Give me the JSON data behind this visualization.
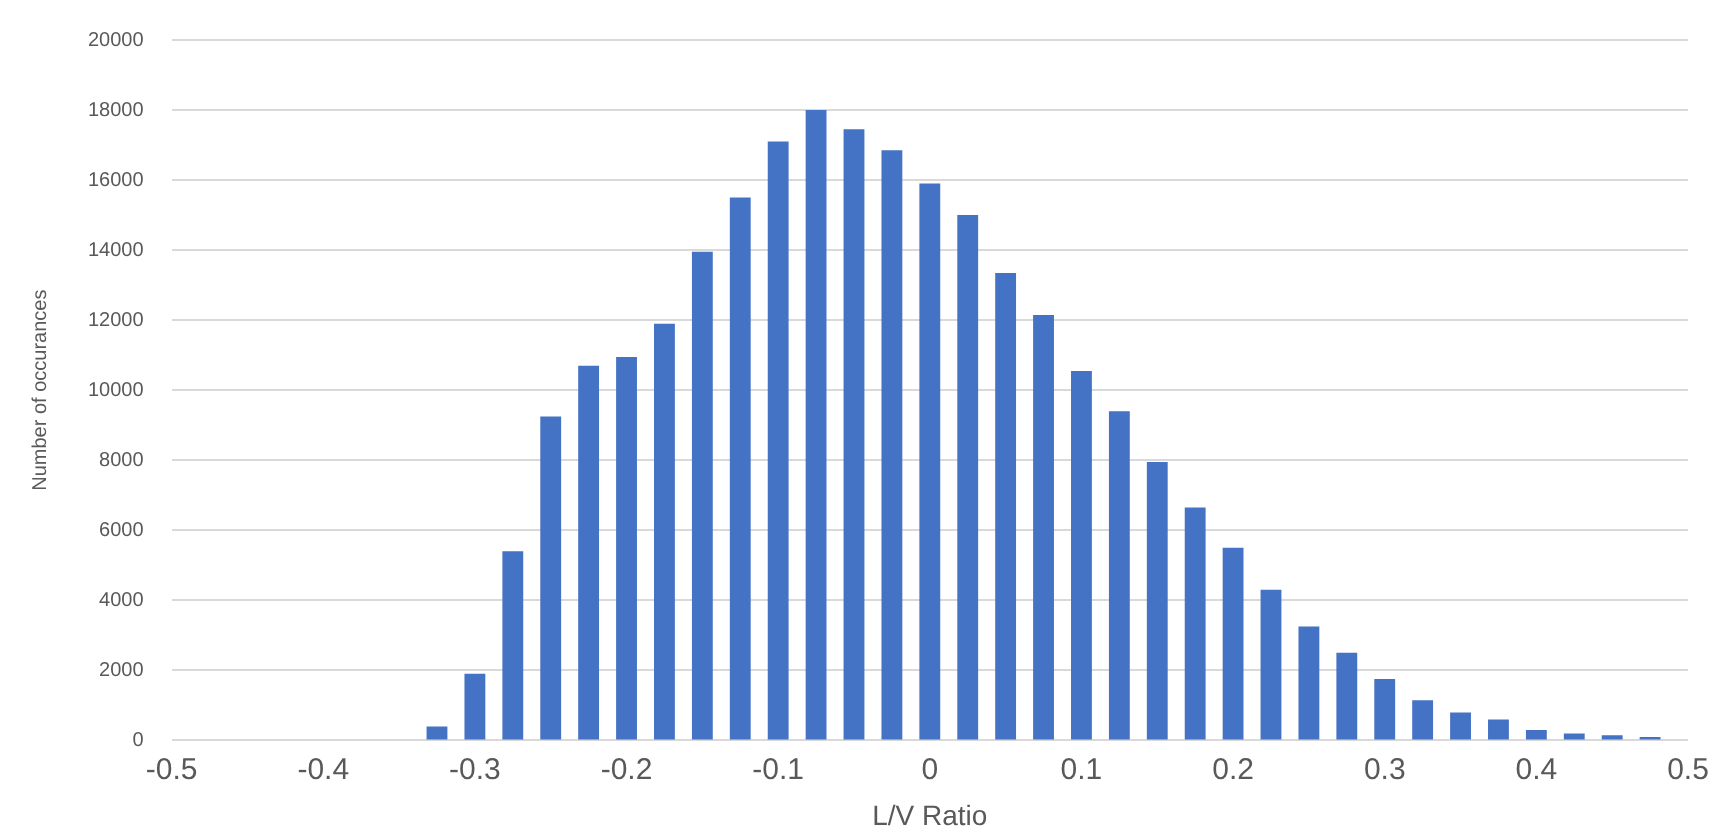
{
  "chart_data": {
    "type": "bar",
    "xlabel": "L/V Ratio",
    "ylabel": "Number of occurances",
    "x": [
      -0.325,
      -0.3,
      -0.275,
      -0.25,
      -0.225,
      -0.2,
      -0.175,
      -0.15,
      -0.125,
      -0.1,
      -0.075,
      -0.05,
      -0.025,
      0,
      0.025,
      0.05,
      0.075,
      0.1,
      0.125,
      0.15,
      0.175,
      0.2,
      0.225,
      0.25,
      0.275,
      0.3,
      0.325,
      0.35,
      0.375,
      0.4,
      0.425,
      0.45,
      0.475
    ],
    "values": [
      400,
      1900,
      5400,
      9250,
      10700,
      10950,
      11900,
      13950,
      15500,
      17100,
      18000,
      17450,
      16850,
      15900,
      15000,
      13350,
      12150,
      10550,
      9400,
      7950,
      6650,
      5500,
      4300,
      3250,
      2500,
      1750,
      1150,
      800,
      600,
      300,
      200,
      150,
      100
    ],
    "color": "#4472c4",
    "xlim": [
      -0.5,
      0.5
    ],
    "xticks": [
      -0.5,
      -0.4,
      -0.3,
      -0.2,
      -0.1,
      0,
      0.1,
      0.2,
      0.3,
      0.4,
      0.5
    ],
    "ylim": [
      0,
      20000
    ],
    "yticks": [
      0,
      2000,
      4000,
      6000,
      8000,
      10000,
      12000,
      14000,
      16000,
      18000,
      20000
    ],
    "grid": "y"
  }
}
